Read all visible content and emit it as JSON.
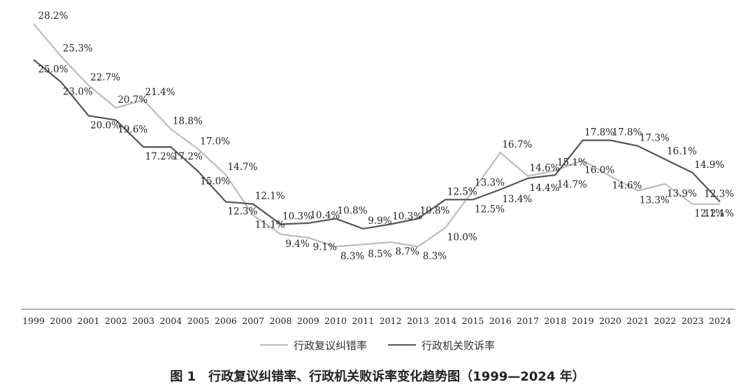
{
  "caption": "图 1　行政复议纠错率、行政机关败诉率变化趋势图（1999—2024 年）",
  "chart_data": {
    "type": "line",
    "title": "",
    "xlabel": "",
    "ylabel": "",
    "categories": [
      "1999",
      "2000",
      "2001",
      "2002",
      "2003",
      "2004",
      "2005",
      "2006",
      "2007",
      "2008",
      "2009",
      "2010",
      "2011",
      "2012",
      "2013",
      "2014",
      "2015",
      "2016",
      "2017",
      "2018",
      "2019",
      "2020",
      "2021",
      "2022",
      "2023",
      "2024"
    ],
    "ylim": [
      0,
      30
    ],
    "value_suffix": "%",
    "grid": false,
    "legend_position": "bottom-center",
    "series": [
      {
        "name": "行政复议纠错率",
        "color": "#bcbcbc",
        "values": [
          28.2,
          25.3,
          22.7,
          20.7,
          21.4,
          18.8,
          17.0,
          14.7,
          11.1,
          9.4,
          9.1,
          8.3,
          8.5,
          8.7,
          8.3,
          10.0,
          13.3,
          16.7,
          14.6,
          15.1,
          16.0,
          14.6,
          13.3,
          13.9,
          12.1,
          12.1
        ]
      },
      {
        "name": "行政机关败诉率",
        "color": "#555555",
        "values": [
          25.0,
          23.0,
          20.0,
          19.6,
          17.2,
          17.2,
          15.0,
          12.3,
          12.1,
          10.3,
          10.4,
          10.8,
          9.9,
          10.3,
          10.8,
          12.5,
          12.5,
          13.4,
          14.4,
          14.7,
          17.8,
          17.8,
          17.3,
          16.1,
          14.9,
          12.3
        ]
      }
    ]
  }
}
